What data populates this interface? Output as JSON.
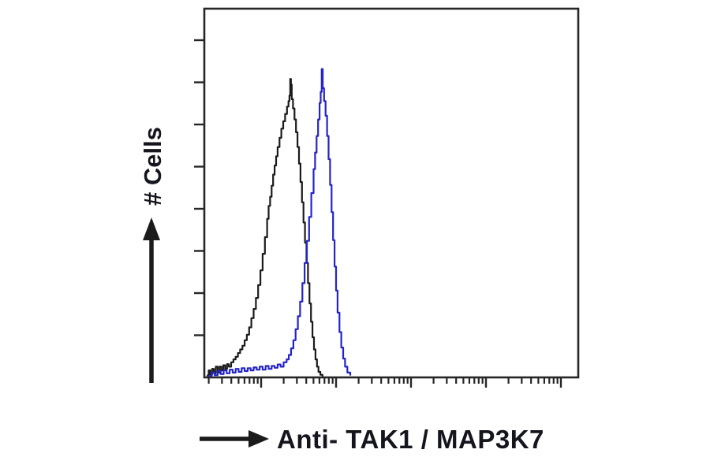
{
  "labels": {
    "ylabel": "# Cells",
    "xlabel": "Anti- TAK1 / MAP3K7"
  },
  "colors": {
    "background": "#ffffff",
    "axis": "#262626",
    "text": "#15151e",
    "black_curve": "#1b1b1b",
    "blue_curve": "#2424c8"
  },
  "chart_data": {
    "type": "line",
    "subtype": "flow-cytometry-histogram-overlay",
    "title": "",
    "xlabel": "Anti- TAK1 / MAP3K7",
    "ylabel": "# Cells",
    "grid": false,
    "legend": "none",
    "x_axis": {
      "scale": "log",
      "unit": "fluorescence intensity (unlabeled, log decades)",
      "visible_decade_range": [
        0.24,
        5.24
      ],
      "major_decades": [
        1,
        2,
        3,
        4,
        5
      ],
      "minor_ticks_per_decade": [
        2,
        3,
        4,
        5,
        6,
        7,
        8,
        9
      ]
    },
    "y_axis": {
      "scale": "linear",
      "unit": "relative cell count (unlabeled)",
      "range": [
        0,
        1
      ],
      "tick_count": 8
    },
    "series": [
      {
        "name": "black_curve",
        "description": "left histogram peak (black outline), mode near decade 1.39, peak height 0.81",
        "color": "#1b1b1b",
        "points": [
          [
            0.275,
            0.004
          ],
          [
            0.3,
            0.018
          ],
          [
            0.32,
            0.006
          ],
          [
            0.345,
            0.022
          ],
          [
            0.37,
            0.01
          ],
          [
            0.395,
            0.028
          ],
          [
            0.42,
            0.012
          ],
          [
            0.445,
            0.028
          ],
          [
            0.47,
            0.018
          ],
          [
            0.495,
            0.032
          ],
          [
            0.52,
            0.022
          ],
          [
            0.545,
            0.035
          ],
          [
            0.57,
            0.028
          ],
          [
            0.6,
            0.04
          ],
          [
            0.63,
            0.048
          ],
          [
            0.66,
            0.055
          ],
          [
            0.69,
            0.065
          ],
          [
            0.72,
            0.075
          ],
          [
            0.75,
            0.085
          ],
          [
            0.78,
            0.1
          ],
          [
            0.81,
            0.115
          ],
          [
            0.84,
            0.135
          ],
          [
            0.87,
            0.16
          ],
          [
            0.9,
            0.185
          ],
          [
            0.93,
            0.215
          ],
          [
            0.96,
            0.25
          ],
          [
            0.99,
            0.29
          ],
          [
            1.02,
            0.335
          ],
          [
            1.05,
            0.38
          ],
          [
            1.08,
            0.43
          ],
          [
            1.1,
            0.465
          ],
          [
            1.12,
            0.49
          ],
          [
            1.14,
            0.52
          ],
          [
            1.16,
            0.55
          ],
          [
            1.18,
            0.575
          ],
          [
            1.2,
            0.6
          ],
          [
            1.22,
            0.625
          ],
          [
            1.245,
            0.65
          ],
          [
            1.27,
            0.675
          ],
          [
            1.295,
            0.695
          ],
          [
            1.32,
            0.715
          ],
          [
            1.345,
            0.735
          ],
          [
            1.365,
            0.75
          ],
          [
            1.378,
            0.765
          ],
          [
            1.388,
            0.81
          ],
          [
            1.398,
            0.795
          ],
          [
            1.408,
            0.755
          ],
          [
            1.425,
            0.73
          ],
          [
            1.445,
            0.7
          ],
          [
            1.465,
            0.665
          ],
          [
            1.485,
            0.625
          ],
          [
            1.505,
            0.58
          ],
          [
            1.525,
            0.53
          ],
          [
            1.545,
            0.475
          ],
          [
            1.565,
            0.42
          ],
          [
            1.585,
            0.365
          ],
          [
            1.605,
            0.31
          ],
          [
            1.625,
            0.255
          ],
          [
            1.645,
            0.2
          ],
          [
            1.665,
            0.15
          ],
          [
            1.685,
            0.108
          ],
          [
            1.705,
            0.075
          ],
          [
            1.725,
            0.048
          ],
          [
            1.745,
            0.028
          ],
          [
            1.765,
            0.014
          ],
          [
            1.79,
            0.006
          ],
          [
            1.82,
            0.002
          ]
        ]
      },
      {
        "name": "blue_curve",
        "description": "right histogram peak (blue outline), mode near decade 1.81, peak height 0.84",
        "color": "#2424c8",
        "points": [
          [
            0.3,
            0.003
          ],
          [
            0.34,
            0.012
          ],
          [
            0.38,
            0.005
          ],
          [
            0.42,
            0.016
          ],
          [
            0.46,
            0.008
          ],
          [
            0.5,
            0.018
          ],
          [
            0.54,
            0.01
          ],
          [
            0.58,
            0.02
          ],
          [
            0.62,
            0.012
          ],
          [
            0.66,
            0.022
          ],
          [
            0.7,
            0.014
          ],
          [
            0.74,
            0.024
          ],
          [
            0.78,
            0.016
          ],
          [
            0.82,
            0.024
          ],
          [
            0.86,
            0.018
          ],
          [
            0.9,
            0.026
          ],
          [
            0.94,
            0.02
          ],
          [
            0.98,
            0.028
          ],
          [
            1.02,
            0.02
          ],
          [
            1.06,
            0.03
          ],
          [
            1.1,
            0.022
          ],
          [
            1.14,
            0.03
          ],
          [
            1.18,
            0.025
          ],
          [
            1.22,
            0.034
          ],
          [
            1.26,
            0.028
          ],
          [
            1.3,
            0.04
          ],
          [
            1.34,
            0.048
          ],
          [
            1.37,
            0.06
          ],
          [
            1.4,
            0.078
          ],
          [
            1.43,
            0.1
          ],
          [
            1.46,
            0.13
          ],
          [
            1.49,
            0.165
          ],
          [
            1.52,
            0.205
          ],
          [
            1.55,
            0.255
          ],
          [
            1.58,
            0.31
          ],
          [
            1.61,
            0.37
          ],
          [
            1.64,
            0.435
          ],
          [
            1.67,
            0.5
          ],
          [
            1.7,
            0.565
          ],
          [
            1.72,
            0.61
          ],
          [
            1.74,
            0.655
          ],
          [
            1.76,
            0.7
          ],
          [
            1.78,
            0.745
          ],
          [
            1.795,
            0.775
          ],
          [
            1.808,
            0.837
          ],
          [
            1.822,
            0.785
          ],
          [
            1.84,
            0.75
          ],
          [
            1.86,
            0.71
          ],
          [
            1.88,
            0.655
          ],
          [
            1.9,
            0.592
          ],
          [
            1.92,
            0.522
          ],
          [
            1.94,
            0.448
          ],
          [
            1.96,
            0.372
          ],
          [
            1.98,
            0.3
          ],
          [
            2.0,
            0.235
          ],
          [
            2.02,
            0.175
          ],
          [
            2.045,
            0.122
          ],
          [
            2.07,
            0.08
          ],
          [
            2.095,
            0.05
          ],
          [
            2.12,
            0.028
          ],
          [
            2.15,
            0.012
          ],
          [
            2.19,
            0.004
          ]
        ]
      }
    ]
  }
}
